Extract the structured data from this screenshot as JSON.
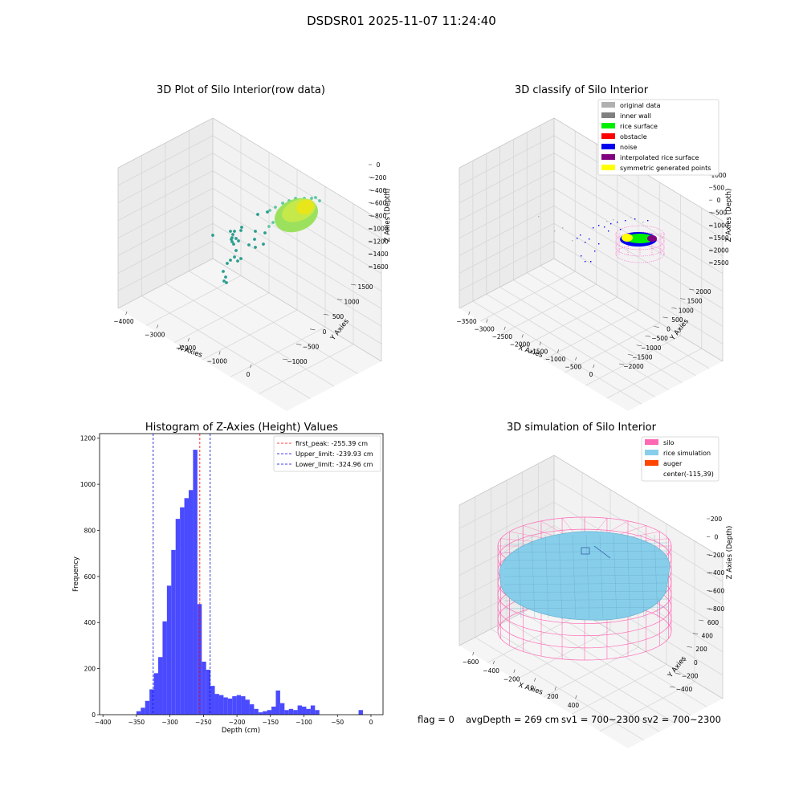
{
  "suptitle": "DSDSR01 2025-11-07 11:24:40",
  "colors": {
    "original": "#b0b0b0",
    "inner_wall": "#808080",
    "rice_surface": "#00ee00",
    "obstacle": "#ff0000",
    "noise": "#0000ee",
    "interpolated": "#800080",
    "symmetric": "#ffff00",
    "silo": "#ff69b4",
    "rice_sim": "#87ceeb",
    "auger": "#ff4500",
    "hist_bar": "#4a4aff",
    "peak_line": "#ff0000",
    "limit_line": "#0000dd"
  },
  "panels": {
    "raw": {
      "title": "3D Plot of Silo Interior(row data)",
      "xlabel": "X Axies",
      "ylabel": "Y Axies",
      "zlabel": "Z Axies (Depth)",
      "xticks": [
        "−4000",
        "−3000",
        "−2000",
        "−1000",
        "0"
      ],
      "yticks": [
        "−1000",
        "−500",
        "0",
        "500",
        "1000",
        "1500"
      ],
      "zticks": [
        "0",
        "−200",
        "−400",
        "−600",
        "−800",
        "−1000",
        "−1200",
        "−1400",
        "−1600"
      ]
    },
    "classify": {
      "title": "3D classify of Silo Interior",
      "xlabel": "X Axies",
      "ylabel": "Y Axies",
      "zlabel": "Z Axies (Depth)",
      "xticks": [
        "−3500",
        "−3000",
        "−2500",
        "−2000",
        "−1500",
        "−1000",
        "−500",
        "0"
      ],
      "yticks": [
        "−2000",
        "−1500",
        "−1000",
        "−500",
        "0",
        "500",
        "1000",
        "1500",
        "2000"
      ],
      "zticks": [
        "1000",
        "500",
        "0",
        "−500",
        "−1000",
        "−1500",
        "−2000",
        "−2500"
      ],
      "legend": [
        {
          "label": "original data",
          "color": "#b0b0b0"
        },
        {
          "label": "inner wall",
          "color": "#808080"
        },
        {
          "label": "rice surface",
          "color": "#00ee00"
        },
        {
          "label": "obstacle",
          "color": "#ff0000"
        },
        {
          "label": "noise",
          "color": "#0000ee"
        },
        {
          "label": "interpolated rice surface",
          "color": "#800080"
        },
        {
          "label": "symmetric generated points",
          "color": "#ffff00"
        }
      ]
    },
    "sim": {
      "title": "3D simulation of Silo Interior",
      "xlabel": "X Axies",
      "ylabel": "Y Axies",
      "zlabel": "Z Axies (Depth)",
      "xticks": [
        "−600",
        "−400",
        "−200",
        "0",
        "200",
        "400"
      ],
      "yticks": [
        "−400",
        "−200",
        "0",
        "200",
        "400",
        "600"
      ],
      "zticks": [
        "200",
        "0",
        "−200",
        "−400",
        "−600",
        "−800"
      ],
      "legend": [
        {
          "label": "silo",
          "color": "#ff69b4"
        },
        {
          "label": "rice simulation",
          "color": "#87ceeb"
        },
        {
          "label": "auger",
          "color": "#ff4500"
        },
        {
          "label": "center(-115,39)",
          "color": ""
        }
      ]
    }
  },
  "chart_data": {
    "type": "bar",
    "title": "Histogram of Z-Axies (Height) Values",
    "xlabel": "Depth (cm)",
    "ylabel": "Frequency",
    "xlim": [
      -405,
      18
    ],
    "ylim": [
      0,
      1220
    ],
    "xticks": [
      -400,
      -350,
      -300,
      -250,
      -200,
      -150,
      -100,
      -50,
      0
    ],
    "yticks": [
      0,
      200,
      400,
      600,
      800,
      1000,
      1200
    ],
    "bin_width": 6.5,
    "bins_start": [
      -350,
      -343.5,
      -337,
      -330.5,
      -324,
      -317.5,
      -311,
      -304.5,
      -298,
      -291.5,
      -285,
      -278.5,
      -272,
      -265.5,
      -259,
      -252.5,
      -246,
      -239.5,
      -233,
      -226.5,
      -220,
      -213.5,
      -207,
      -200.5,
      -194,
      -187.5,
      -181,
      -174.5,
      -168,
      -161.5,
      -155,
      -148.5,
      -142,
      -135.5,
      -129,
      -122.5,
      -116,
      -109.5,
      -103,
      -96.5,
      -90,
      -83.5,
      -77,
      -70.5,
      -64,
      -57.5,
      -51,
      -44.5,
      -38,
      -31.5,
      -25,
      -18.5,
      -12,
      -5.5
    ],
    "values": [
      15,
      30,
      60,
      110,
      180,
      250,
      405,
      560,
      715,
      850,
      900,
      940,
      975,
      1150,
      480,
      230,
      195,
      125,
      90,
      85,
      75,
      70,
      80,
      85,
      80,
      65,
      45,
      25,
      10,
      15,
      20,
      35,
      105,
      50,
      20,
      25,
      20,
      40,
      35,
      25,
      40,
      20,
      0,
      0,
      0,
      0,
      0,
      0,
      0,
      0,
      0,
      20,
      0,
      0
    ],
    "lines": [
      {
        "label": "first_peak: -255.39 cm",
        "x": -255.39,
        "color": "#ff0000"
      },
      {
        "label": "Upper_limit: -239.93 cm",
        "x": -239.93,
        "color": "#0000dd"
      },
      {
        "label": "Lower_limit: -324.96 cm",
        "x": -324.96,
        "color": "#0000dd"
      }
    ],
    "legend_loc": "upper right"
  },
  "footer": {
    "flag": "flag = 0",
    "avg": "avgDepth = 269 cm",
    "sv1": "sv1 = 700~2300",
    "sv2": "sv2 = 700~2300"
  }
}
